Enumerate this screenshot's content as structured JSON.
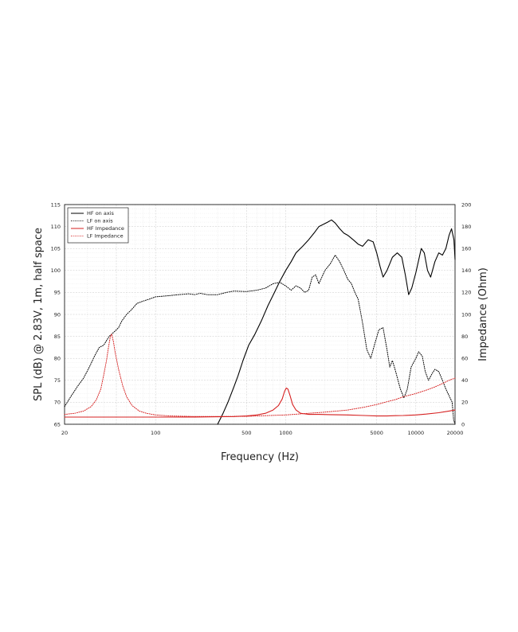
{
  "chart_data": {
    "type": "line",
    "xlabel": "Frequency (Hz)",
    "ylabel": "SPL (dB) @ 2.83V, 1m, half space",
    "y2label": "Impedance (Ohm)",
    "x_scale": "log",
    "xlim": [
      20,
      20000
    ],
    "ylim": [
      65,
      115
    ],
    "y2lim": [
      0,
      200
    ],
    "grid": true,
    "legend_position": "top-left",
    "x_ticks": [
      20,
      100,
      500,
      1000,
      5000,
      10000,
      20000
    ],
    "x_tick_labels": [
      "20",
      "100",
      "500",
      "1000",
      "5000",
      "10000",
      "20000"
    ],
    "y_ticks": [
      65,
      70,
      75,
      80,
      85,
      90,
      95,
      100,
      105,
      110,
      115
    ],
    "y_tick_labels": [
      "65",
      "70",
      "75",
      "80",
      "85",
      "90",
      "95",
      "100",
      "105",
      "110",
      "115"
    ],
    "y2_ticks": [
      0,
      20,
      40,
      60,
      80,
      100,
      120,
      140,
      160,
      180,
      200
    ],
    "y2_tick_labels": [
      "0",
      "20",
      "40",
      "60",
      "80",
      "100",
      "120",
      "140",
      "160",
      "180",
      "200"
    ],
    "series": [
      {
        "name": "HF on axis",
        "axis": "left",
        "color": "#000000",
        "style": "solid",
        "points": [
          [
            300,
            65
          ],
          [
            330,
            67.5
          ],
          [
            360,
            70
          ],
          [
            400,
            73.5
          ],
          [
            430,
            76
          ],
          [
            470,
            79.5
          ],
          [
            520,
            83
          ],
          [
            580,
            85.5
          ],
          [
            650,
            88.5
          ],
          [
            730,
            92
          ],
          [
            820,
            95
          ],
          [
            900,
            97.5
          ],
          [
            1000,
            100
          ],
          [
            1100,
            102
          ],
          [
            1200,
            104
          ],
          [
            1350,
            105.5
          ],
          [
            1500,
            107
          ],
          [
            1650,
            108.5
          ],
          [
            1800,
            110
          ],
          [
            1950,
            110.5
          ],
          [
            2100,
            111
          ],
          [
            2250,
            111.5
          ],
          [
            2400,
            110.8
          ],
          [
            2600,
            109.5
          ],
          [
            2800,
            108.5
          ],
          [
            3000,
            108
          ],
          [
            3300,
            107
          ],
          [
            3600,
            106
          ],
          [
            3900,
            105.5
          ],
          [
            4300,
            107
          ],
          [
            4700,
            106.5
          ],
          [
            5000,
            104
          ],
          [
            5300,
            101
          ],
          [
            5600,
            98.5
          ],
          [
            6000,
            100
          ],
          [
            6600,
            103
          ],
          [
            7200,
            104
          ],
          [
            7800,
            103
          ],
          [
            8300,
            99
          ],
          [
            8800,
            94.5
          ],
          [
            9300,
            96
          ],
          [
            10000,
            99.5
          ],
          [
            11000,
            105
          ],
          [
            11600,
            104
          ],
          [
            12300,
            100
          ],
          [
            13000,
            98.5
          ],
          [
            14000,
            102
          ],
          [
            15000,
            104
          ],
          [
            16000,
            103.5
          ],
          [
            17000,
            105
          ],
          [
            18000,
            108
          ],
          [
            18800,
            109.5
          ],
          [
            19600,
            107
          ],
          [
            20000,
            102.5
          ]
        ]
      },
      {
        "name": "LF on axis",
        "axis": "left",
        "color": "#000000",
        "style": "dotted",
        "points": [
          [
            20,
            69
          ],
          [
            22,
            71
          ],
          [
            25,
            73.5
          ],
          [
            28,
            75.5
          ],
          [
            31,
            78
          ],
          [
            34,
            80.5
          ],
          [
            37,
            82.5
          ],
          [
            40,
            83
          ],
          [
            44,
            85
          ],
          [
            48,
            86
          ],
          [
            52,
            87
          ],
          [
            55,
            88.5
          ],
          [
            60,
            90
          ],
          [
            65,
            91
          ],
          [
            72,
            92.5
          ],
          [
            80,
            93
          ],
          [
            90,
            93.5
          ],
          [
            100,
            94
          ],
          [
            120,
            94.2
          ],
          [
            150,
            94.5
          ],
          [
            180,
            94.7
          ],
          [
            200,
            94.5
          ],
          [
            220,
            94.8
          ],
          [
            250,
            94.5
          ],
          [
            300,
            94.5
          ],
          [
            350,
            95
          ],
          [
            400,
            95.3
          ],
          [
            500,
            95.2
          ],
          [
            600,
            95.5
          ],
          [
            700,
            96
          ],
          [
            800,
            97
          ],
          [
            900,
            97.3
          ],
          [
            1000,
            96.5
          ],
          [
            1100,
            95.5
          ],
          [
            1200,
            96.5
          ],
          [
            1300,
            96
          ],
          [
            1400,
            95
          ],
          [
            1500,
            95.5
          ],
          [
            1600,
            98.5
          ],
          [
            1700,
            99
          ],
          [
            1800,
            97
          ],
          [
            2000,
            100
          ],
          [
            2200,
            101.5
          ],
          [
            2400,
            103.5
          ],
          [
            2600,
            102
          ],
          [
            2800,
            100
          ],
          [
            3000,
            98
          ],
          [
            3200,
            97
          ],
          [
            3400,
            95
          ],
          [
            3600,
            93.5
          ],
          [
            3900,
            88
          ],
          [
            4200,
            82
          ],
          [
            4500,
            80
          ],
          [
            4800,
            83
          ],
          [
            5200,
            86.5
          ],
          [
            5600,
            87
          ],
          [
            6000,
            82
          ],
          [
            6300,
            78
          ],
          [
            6600,
            79.5
          ],
          [
            7000,
            77
          ],
          [
            7600,
            73
          ],
          [
            8100,
            71
          ],
          [
            8600,
            73
          ],
          [
            9200,
            78
          ],
          [
            10000,
            80
          ],
          [
            10500,
            81.5
          ],
          [
            11200,
            80.5
          ],
          [
            11800,
            77
          ],
          [
            12500,
            75
          ],
          [
            13300,
            76.5
          ],
          [
            14000,
            77.5
          ],
          [
            15000,
            77
          ],
          [
            16000,
            75
          ],
          [
            17000,
            73
          ],
          [
            18000,
            71.5
          ],
          [
            19000,
            70
          ],
          [
            19500,
            66
          ],
          [
            20000,
            62
          ]
        ]
      },
      {
        "name": "HF Impedance",
        "axis": "right",
        "color": "#d62020",
        "style": "solid",
        "points": [
          [
            20,
            6.5
          ],
          [
            50,
            6.5
          ],
          [
            100,
            6.5
          ],
          [
            200,
            6.6
          ],
          [
            300,
            6.8
          ],
          [
            400,
            7
          ],
          [
            500,
            7.5
          ],
          [
            600,
            8.5
          ],
          [
            700,
            10
          ],
          [
            800,
            13
          ],
          [
            880,
            17
          ],
          [
            940,
            23
          ],
          [
            980,
            30
          ],
          [
            1010,
            33
          ],
          [
            1040,
            32
          ],
          [
            1080,
            26
          ],
          [
            1130,
            18
          ],
          [
            1200,
            13
          ],
          [
            1300,
            10
          ],
          [
            1500,
            9
          ],
          [
            1800,
            9
          ],
          [
            2200,
            8.8
          ],
          [
            3000,
            8.5
          ],
          [
            4000,
            8
          ],
          [
            5000,
            7.5
          ],
          [
            6000,
            7.5
          ],
          [
            7000,
            7.8
          ],
          [
            8000,
            8
          ],
          [
            10000,
            8.5
          ],
          [
            12000,
            9.3
          ],
          [
            15000,
            10.5
          ],
          [
            18000,
            12
          ],
          [
            20000,
            13
          ]
        ]
      },
      {
        "name": "LF Impedance",
        "axis": "right",
        "color": "#d62020",
        "style": "dotted",
        "points": [
          [
            20,
            9
          ],
          [
            24,
            10
          ],
          [
            28,
            12
          ],
          [
            32,
            16
          ],
          [
            35,
            22
          ],
          [
            38,
            32
          ],
          [
            40,
            45
          ],
          [
            42,
            58
          ],
          [
            43.5,
            70
          ],
          [
            45,
            80
          ],
          [
            46,
            82
          ],
          [
            47.5,
            75
          ],
          [
            49,
            65
          ],
          [
            52,
            50
          ],
          [
            56,
            35
          ],
          [
            60,
            25
          ],
          [
            66,
            17
          ],
          [
            75,
            12
          ],
          [
            85,
            10
          ],
          [
            100,
            8.5
          ],
          [
            130,
            7.5
          ],
          [
            200,
            7
          ],
          [
            300,
            7
          ],
          [
            500,
            7.2
          ],
          [
            700,
            7.8
          ],
          [
            1000,
            8.5
          ],
          [
            1500,
            10
          ],
          [
            2000,
            11
          ],
          [
            3000,
            13
          ],
          [
            4000,
            15.5
          ],
          [
            5000,
            18
          ],
          [
            6000,
            20.5
          ],
          [
            7000,
            22.5
          ],
          [
            8000,
            25
          ],
          [
            10000,
            28
          ],
          [
            12000,
            31
          ],
          [
            14000,
            34
          ],
          [
            16000,
            37
          ],
          [
            18000,
            40
          ],
          [
            20000,
            42
          ]
        ]
      }
    ]
  }
}
